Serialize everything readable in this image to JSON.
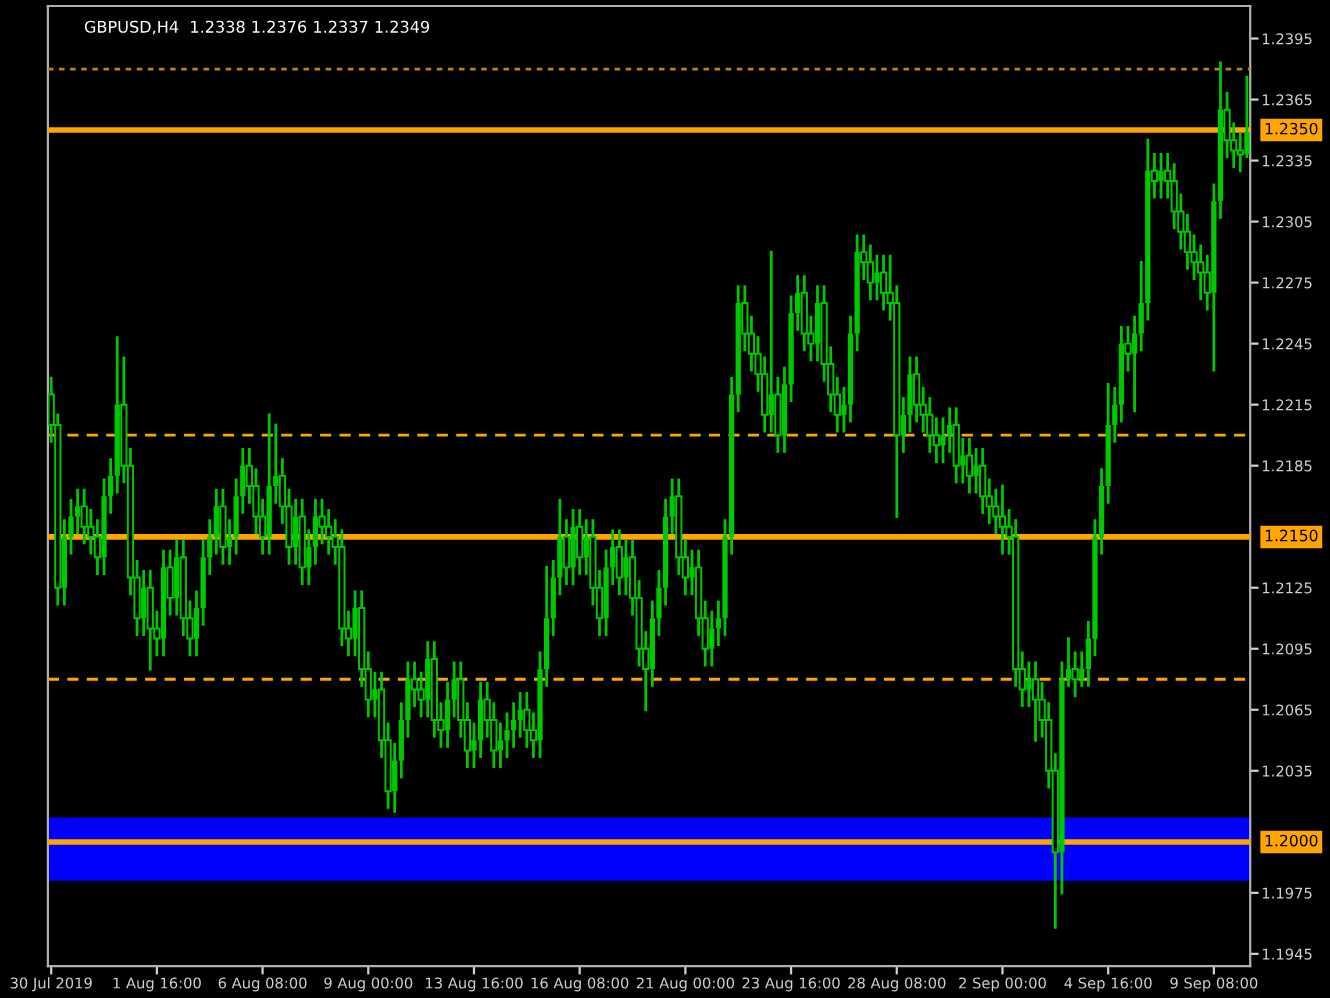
{
  "chart_data": {
    "type": "candlestick",
    "title": "GBPUSD,H4  1.2338 1.2376 1.2337 1.2349",
    "categories": [
      "30 Jul 2019",
      null,
      null,
      null,
      null,
      null,
      null,
      null,
      null,
      null,
      null,
      null,
      null,
      null,
      null,
      null,
      "1 Aug 16:00",
      null,
      null,
      null,
      null,
      null,
      null,
      null,
      null,
      null,
      null,
      null,
      null,
      null,
      null,
      null,
      "6 Aug 08:00",
      null,
      null,
      null,
      null,
      null,
      null,
      null,
      null,
      null,
      null,
      null,
      null,
      null,
      null,
      null,
      "9 Aug 00:00",
      null,
      null,
      null,
      null,
      null,
      null,
      null,
      null,
      null,
      null,
      null,
      null,
      null,
      null,
      null,
      "13 Aug 16:00",
      null,
      null,
      null,
      null,
      null,
      null,
      null,
      null,
      null,
      null,
      null,
      null,
      null,
      null,
      null,
      "16 Aug 08:00",
      null,
      null,
      null,
      null,
      null,
      null,
      null,
      null,
      null,
      null,
      null,
      null,
      null,
      null,
      null,
      "21 Aug 00:00",
      null,
      null,
      null,
      null,
      null,
      null,
      null,
      null,
      null,
      null,
      null,
      null,
      null,
      null,
      null,
      "23 Aug 16:00",
      null,
      null,
      null,
      null,
      null,
      null,
      null,
      null,
      null,
      null,
      null,
      null,
      null,
      null,
      null,
      "28 Aug 08:00",
      null,
      null,
      null,
      null,
      null,
      null,
      null,
      null,
      null,
      null,
      null,
      null,
      null,
      null,
      null,
      "2 Sep 00:00",
      null,
      null,
      null,
      null,
      null,
      null,
      null,
      null,
      null,
      null,
      null,
      null,
      null,
      null,
      null,
      "4 Sep 16:00",
      null,
      null,
      null,
      null,
      null,
      null,
      null,
      null,
      null,
      null,
      null,
      null,
      null,
      null,
      null,
      "9 Sep 08:00",
      null,
      null,
      null,
      null,
      null
    ],
    "colors": [
      "#00c800",
      "#00c800",
      "#00c800",
      "#00c800",
      "#00c800",
      "#00c800",
      "#00c800",
      "#00c800",
      "#00c800",
      "#00c800",
      "#00c800",
      "#00c800",
      "#00c800",
      "#00c800",
      "#00c800",
      "#00c800",
      "#00c800",
      "#00c800",
      "#00c800",
      "#00c800",
      "#00c800",
      "#00c800",
      "#00c800",
      "#00c800",
      "#00c800",
      "#00c800",
      "#00c800",
      "#00c800",
      "#00c800",
      "#00c800",
      "#00c800",
      "#00c800",
      "#00c800",
      "#00c800",
      "#00c800",
      "#00c800",
      "#00c800",
      "#00c800",
      "#00c800",
      "#00c800",
      "#00c800",
      "#00c800",
      "#00c800",
      "#00c800",
      "#00c800",
      "#00c800",
      "#00c800",
      "#00c800",
      "#00c800",
      "#00c800",
      "#00c800",
      "#00c800",
      "#00c800",
      "#00c800",
      "#00c800",
      "#00c800",
      "#00c800",
      "#00c800",
      "#00c800",
      "#00c800",
      "#00c800",
      "#00c800",
      "#00c800",
      "#00c800",
      "#00c800",
      "#00c800",
      "#00c800",
      "#00c800",
      "#00c800",
      "#00c800",
      "#00c800",
      "#00c800",
      "#00c800",
      "#00c800",
      "#00c800",
      "#00c800",
      "#00c800",
      "#00c800",
      "#00c800",
      "#00c800",
      "#00c800",
      "#00c800",
      "#00c800",
      "#00c800",
      "#00c800",
      "#00c800",
      "#00c800",
      "#00c800",
      "#00c800",
      "#00c800",
      "#00c800",
      "#00c800",
      "#00c800",
      "#00c800",
      "#00c800",
      "#00c800",
      "#00c800",
      "#00c800",
      "#00c800",
      "#00c800",
      "#00c800",
      "#00c800",
      "#00c800",
      "#00c800",
      "#00c800",
      "#00c800",
      "#00c800",
      "#00c800",
      "#00c800",
      "#00c800",
      "#00c800",
      "#00c800",
      "#00c800",
      "#00c800",
      "#00c800",
      "#00c800",
      "#00c800",
      "#00c800",
      "#00c800",
      "#00c800",
      "#00c800",
      "#00c800",
      "#00c800",
      "#00c800",
      "#00c800",
      "#00c800",
      "#00c800",
      "#00c800",
      "#00c800",
      "#00c800",
      "#00c800",
      "#00c800",
      "#00c800",
      "#00c800",
      "#00c800",
      "#00c800",
      "#00c800",
      "#00c800",
      "#00c800",
      "#00c800",
      "#00c800",
      "#00c800",
      "#00c800",
      "#00c800",
      "#00c800",
      "#00c800",
      "#00c800",
      "#00c800",
      "#00c800",
      "#00c800",
      "#00c800",
      "#00c800",
      "#00c800",
      "#00c800",
      "#00c800",
      "#00c800",
      "#00c800",
      "#00c800",
      "#00c800",
      "#00c800",
      "#00c800",
      "#00c800",
      "#00c800",
      "#00c800",
      "#00c800",
      "#00c800",
      "#00c800",
      "#00c800",
      "#00c800",
      "#00c800",
      "#00c800",
      "#00c800",
      "#00c800",
      "#00c800",
      "#00c800",
      "#00c800",
      "#00c800",
      "#00c800",
      "#00c800",
      "#00c800",
      "#00c800",
      "#00c800"
    ],
    "ohlc": [
      [
        1.222,
        1.2228,
        1.2197,
        1.2205
      ],
      [
        1.2205,
        1.221,
        1.2117,
        1.2125
      ],
      [
        1.2125,
        1.2158,
        1.2117,
        1.215
      ],
      [
        1.215,
        1.2168,
        1.2142,
        1.216
      ],
      [
        1.216,
        1.2173,
        1.2152,
        1.2165
      ],
      [
        1.2165,
        1.2173,
        1.2147,
        1.2155
      ],
      [
        1.2155,
        1.2163,
        1.2142,
        1.215
      ],
      [
        1.215,
        1.2158,
        1.2132,
        1.214
      ],
      [
        1.214,
        1.2178,
        1.2132,
        1.217
      ],
      [
        1.217,
        1.2188,
        1.2162,
        1.218
      ],
      [
        1.218,
        1.2248,
        1.2172,
        1.2215
      ],
      [
        1.2215,
        1.2238,
        1.2177,
        1.2185
      ],
      [
        1.2185,
        1.2193,
        1.2122,
        1.213
      ],
      [
        1.213,
        1.2138,
        1.2102,
        1.211
      ],
      [
        1.211,
        1.2133,
        1.2102,
        1.2125
      ],
      [
        1.2125,
        1.2133,
        1.2085,
        1.2105
      ],
      [
        1.2105,
        1.2113,
        1.2092,
        1.21
      ],
      [
        1.21,
        1.2143,
        1.2092,
        1.2135
      ],
      [
        1.2135,
        1.2143,
        1.2112,
        1.212
      ],
      [
        1.212,
        1.2148,
        1.2112,
        1.214
      ],
      [
        1.214,
        1.2148,
        1.2102,
        1.211
      ],
      [
        1.211,
        1.2118,
        1.2092,
        1.21
      ],
      [
        1.21,
        1.2123,
        1.2092,
        1.2115
      ],
      [
        1.2115,
        1.2148,
        1.2107,
        1.214
      ],
      [
        1.214,
        1.2158,
        1.2132,
        1.215
      ],
      [
        1.215,
        1.2173,
        1.2142,
        1.2165
      ],
      [
        1.2165,
        1.2173,
        1.2137,
        1.2145
      ],
      [
        1.2145,
        1.2158,
        1.2137,
        1.215
      ],
      [
        1.215,
        1.2178,
        1.2142,
        1.217
      ],
      [
        1.217,
        1.2193,
        1.2162,
        1.2185
      ],
      [
        1.2185,
        1.2193,
        1.2167,
        1.2175
      ],
      [
        1.2175,
        1.2183,
        1.2152,
        1.216
      ],
      [
        1.216,
        1.2168,
        1.2142,
        1.215
      ],
      [
        1.215,
        1.221,
        1.2142,
        1.2175
      ],
      [
        1.2175,
        1.2205,
        1.2167,
        1.218
      ],
      [
        1.218,
        1.2188,
        1.2157,
        1.2165
      ],
      [
        1.2165,
        1.2173,
        1.2137,
        1.2145
      ],
      [
        1.2145,
        1.2168,
        1.2137,
        1.216
      ],
      [
        1.216,
        1.2168,
        1.2127,
        1.2135
      ],
      [
        1.2135,
        1.2153,
        1.2127,
        1.2145
      ],
      [
        1.2145,
        1.2168,
        1.2137,
        1.216
      ],
      [
        1.216,
        1.2168,
        1.2147,
        1.2155
      ],
      [
        1.2155,
        1.2163,
        1.2142,
        1.215
      ],
      [
        1.215,
        1.2158,
        1.2137,
        1.2145
      ],
      [
        1.2145,
        1.2153,
        1.2097,
        1.2105
      ],
      [
        1.2105,
        1.2113,
        1.2092,
        1.21
      ],
      [
        1.21,
        1.2123,
        1.2092,
        1.2115
      ],
      [
        1.2115,
        1.2123,
        1.2077,
        1.2085
      ],
      [
        1.2085,
        1.2093,
        1.2062,
        1.207
      ],
      [
        1.207,
        1.2083,
        1.2062,
        1.2075
      ],
      [
        1.2075,
        1.2083,
        1.2042,
        1.205
      ],
      [
        1.205,
        1.2058,
        1.2017,
        1.2025
      ],
      [
        1.2025,
        1.2048,
        1.2015,
        1.204
      ],
      [
        1.204,
        1.2068,
        1.2032,
        1.206
      ],
      [
        1.206,
        1.2088,
        1.2052,
        1.208
      ],
      [
        1.208,
        1.2088,
        1.2067,
        1.2075
      ],
      [
        1.2075,
        1.2083,
        1.2062,
        1.207
      ],
      [
        1.207,
        1.2098,
        1.2062,
        1.209
      ],
      [
        1.209,
        1.2098,
        1.2052,
        1.206
      ],
      [
        1.206,
        1.2068,
        1.2047,
        1.2055
      ],
      [
        1.2055,
        1.2078,
        1.2047,
        1.207
      ],
      [
        1.207,
        1.2088,
        1.2062,
        1.208
      ],
      [
        1.208,
        1.2088,
        1.2052,
        1.206
      ],
      [
        1.206,
        1.2068,
        1.2037,
        1.2045
      ],
      [
        1.2045,
        1.2058,
        1.2037,
        1.205
      ],
      [
        1.205,
        1.2078,
        1.2042,
        1.207
      ],
      [
        1.207,
        1.2078,
        1.2052,
        1.206
      ],
      [
        1.206,
        1.2068,
        1.2037,
        1.2045
      ],
      [
        1.2045,
        1.2058,
        1.2037,
        1.205
      ],
      [
        1.205,
        1.2063,
        1.2042,
        1.2055
      ],
      [
        1.2055,
        1.2068,
        1.2047,
        1.206
      ],
      [
        1.206,
        1.2073,
        1.2052,
        1.2065
      ],
      [
        1.2065,
        1.2073,
        1.2047,
        1.2055
      ],
      [
        1.2055,
        1.2063,
        1.2042,
        1.205
      ],
      [
        1.205,
        1.2093,
        1.2042,
        1.2085
      ],
      [
        1.2085,
        1.2135,
        1.2077,
        1.211
      ],
      [
        1.211,
        1.2138,
        1.2102,
        1.213
      ],
      [
        1.213,
        1.2168,
        1.2122,
        1.215
      ],
      [
        1.215,
        1.2158,
        1.2127,
        1.2135
      ],
      [
        1.2135,
        1.2163,
        1.2127,
        1.2155
      ],
      [
        1.2155,
        1.2163,
        1.2132,
        1.214
      ],
      [
        1.214,
        1.2158,
        1.2132,
        1.215
      ],
      [
        1.215,
        1.2158,
        1.2117,
        1.2125
      ],
      [
        1.2125,
        1.2133,
        1.2102,
        1.211
      ],
      [
        1.211,
        1.2143,
        1.2102,
        1.2135
      ],
      [
        1.2135,
        1.2153,
        1.2127,
        1.2145
      ],
      [
        1.2145,
        1.2153,
        1.2122,
        1.213
      ],
      [
        1.213,
        1.2148,
        1.2122,
        1.214
      ],
      [
        1.214,
        1.2148,
        1.2112,
        1.212
      ],
      [
        1.212,
        1.2128,
        1.2087,
        1.2095
      ],
      [
        1.2095,
        1.2103,
        1.2065,
        1.2085
      ],
      [
        1.2085,
        1.2118,
        1.2077,
        1.211
      ],
      [
        1.211,
        1.2133,
        1.2102,
        1.2125
      ],
      [
        1.2125,
        1.2168,
        1.2117,
        1.216
      ],
      [
        1.216,
        1.2178,
        1.2152,
        1.217
      ],
      [
        1.217,
        1.2178,
        1.2132,
        1.214
      ],
      [
        1.214,
        1.2148,
        1.2122,
        1.213
      ],
      [
        1.213,
        1.2143,
        1.2122,
        1.2135
      ],
      [
        1.2135,
        1.2143,
        1.2102,
        1.211
      ],
      [
        1.211,
        1.2118,
        1.2087,
        1.2095
      ],
      [
        1.2095,
        1.2113,
        1.2087,
        1.2105
      ],
      [
        1.2105,
        1.2118,
        1.2097,
        1.211
      ],
      [
        1.211,
        1.2158,
        1.2102,
        1.215
      ],
      [
        1.215,
        1.2228,
        1.2142,
        1.222
      ],
      [
        1.222,
        1.2273,
        1.2212,
        1.2265
      ],
      [
        1.2265,
        1.2273,
        1.2242,
        1.225
      ],
      [
        1.225,
        1.2258,
        1.2232,
        1.224
      ],
      [
        1.224,
        1.2248,
        1.2222,
        1.223
      ],
      [
        1.223,
        1.2238,
        1.2202,
        1.221
      ],
      [
        1.221,
        1.229,
        1.2202,
        1.222
      ],
      [
        1.222,
        1.2228,
        1.2192,
        1.22
      ],
      [
        1.22,
        1.2233,
        1.2192,
        1.2225
      ],
      [
        1.2225,
        1.2268,
        1.2217,
        1.226
      ],
      [
        1.226,
        1.2278,
        1.2252,
        1.227
      ],
      [
        1.227,
        1.2278,
        1.2242,
        1.225
      ],
      [
        1.225,
        1.2258,
        1.2237,
        1.2245
      ],
      [
        1.2245,
        1.2273,
        1.2237,
        1.2265
      ],
      [
        1.2265,
        1.2273,
        1.2227,
        1.2235
      ],
      [
        1.2235,
        1.2243,
        1.2212,
        1.222
      ],
      [
        1.222,
        1.2228,
        1.2202,
        1.221
      ],
      [
        1.221,
        1.2223,
        1.2202,
        1.2215
      ],
      [
        1.2215,
        1.2258,
        1.2207,
        1.225
      ],
      [
        1.225,
        1.2298,
        1.2242,
        1.229
      ],
      [
        1.229,
        1.2298,
        1.2277,
        1.2285
      ],
      [
        1.2285,
        1.2293,
        1.2267,
        1.2275
      ],
      [
        1.2275,
        1.2288,
        1.2267,
        1.228
      ],
      [
        1.228,
        1.2288,
        1.2262,
        1.227
      ],
      [
        1.227,
        1.2288,
        1.2257,
        1.2265
      ],
      [
        1.2265,
        1.2273,
        1.216,
        1.22
      ],
      [
        1.22,
        1.2218,
        1.2192,
        1.221
      ],
      [
        1.221,
        1.2238,
        1.2202,
        1.223
      ],
      [
        1.223,
        1.2238,
        1.2207,
        1.2215
      ],
      [
        1.2215,
        1.2223,
        1.2202,
        1.221
      ],
      [
        1.221,
        1.2218,
        1.2192,
        1.22
      ],
      [
        1.22,
        1.2208,
        1.2187,
        1.2195
      ],
      [
        1.2195,
        1.2208,
        1.2187,
        1.22
      ],
      [
        1.22,
        1.2213,
        1.2192,
        1.2205
      ],
      [
        1.2205,
        1.2213,
        1.2177,
        1.2185
      ],
      [
        1.2185,
        1.2198,
        1.2177,
        1.219
      ],
      [
        1.219,
        1.2198,
        1.2172,
        1.218
      ],
      [
        1.218,
        1.2193,
        1.2172,
        1.2185
      ],
      [
        1.2185,
        1.2193,
        1.2162,
        1.217
      ],
      [
        1.217,
        1.2178,
        1.2157,
        1.2165
      ],
      [
        1.2165,
        1.2173,
        1.2152,
        1.216
      ],
      [
        1.216,
        1.2175,
        1.2142,
        1.2155
      ],
      [
        1.2155,
        1.2163,
        1.2142,
        1.215
      ],
      [
        1.215,
        1.2158,
        1.2077,
        1.2085
      ],
      [
        1.2085,
        1.2093,
        1.2067,
        1.2075
      ],
      [
        1.2075,
        1.2088,
        1.2067,
        1.208
      ],
      [
        1.208,
        1.2088,
        1.205,
        1.207
      ],
      [
        1.207,
        1.2078,
        1.2052,
        1.206
      ],
      [
        1.206,
        1.2068,
        1.2027,
        1.2035
      ],
      [
        1.2035,
        1.2043,
        1.1958,
        1.1995
      ],
      [
        1.1995,
        1.2088,
        1.1975,
        1.208
      ],
      [
        1.208,
        1.21,
        1.2077,
        1.2085
      ],
      [
        1.2085,
        1.2093,
        1.2072,
        1.208
      ],
      [
        1.208,
        1.2093,
        1.2077,
        1.2085
      ],
      [
        1.2085,
        1.2108,
        1.2077,
        1.21
      ],
      [
        1.21,
        1.2158,
        1.2092,
        1.215
      ],
      [
        1.215,
        1.2183,
        1.2142,
        1.2175
      ],
      [
        1.2175,
        1.2225,
        1.2167,
        1.2205
      ],
      [
        1.2205,
        1.2223,
        1.2197,
        1.2215
      ],
      [
        1.2215,
        1.2253,
        1.2207,
        1.2245
      ],
      [
        1.2245,
        1.2253,
        1.2232,
        1.224
      ],
      [
        1.224,
        1.2258,
        1.2212,
        1.225
      ],
      [
        1.225,
        1.2285,
        1.2242,
        1.2265
      ],
      [
        1.2265,
        1.2345,
        1.2257,
        1.233
      ],
      [
        1.233,
        1.2338,
        1.2317,
        1.2325
      ],
      [
        1.2325,
        1.2338,
        1.2317,
        1.233
      ],
      [
        1.233,
        1.2338,
        1.2317,
        1.2325
      ],
      [
        1.2325,
        1.2333,
        1.2302,
        1.231
      ],
      [
        1.231,
        1.2318,
        1.2292,
        1.23
      ],
      [
        1.23,
        1.2308,
        1.2282,
        1.229
      ],
      [
        1.229,
        1.2298,
        1.2277,
        1.2285
      ],
      [
        1.2285,
        1.2293,
        1.2267,
        1.228
      ],
      [
        1.228,
        1.2288,
        1.2262,
        1.227
      ],
      [
        1.227,
        1.2323,
        1.2232,
        1.2315
      ],
      [
        1.2315,
        1.2383,
        1.2307,
        1.236
      ],
      [
        1.236,
        1.2368,
        1.2337,
        1.2345
      ],
      [
        1.2345,
        1.2353,
        1.2332,
        1.234
      ],
      [
        1.234,
        1.2348,
        1.233,
        1.2338
      ],
      [
        1.2338,
        1.2376,
        1.2337,
        1.2349
      ]
    ],
    "ylim": [
      1.1939,
      1.2411
    ],
    "yticks": [
      1.1945,
      1.1975,
      1.2035,
      1.2065,
      1.2095,
      1.2125,
      1.2185,
      1.2215,
      1.2245,
      1.2275,
      1.2305,
      1.2335,
      1.2365,
      1.2395
    ],
    "ref_lines": [
      {
        "axis": "y",
        "value": 1.238,
        "color": "#b8860b",
        "line_style": "dotted"
      },
      {
        "axis": "y",
        "value": 1.235,
        "label": "1.2350",
        "color": "#ffa500",
        "line_style": "solid"
      },
      {
        "axis": "y",
        "value": 1.22,
        "color": "#ffa500",
        "line_style": "dashed"
      },
      {
        "axis": "y",
        "value": 1.215,
        "label": "1.2150",
        "color": "#ffa500",
        "line_style": "solid"
      },
      {
        "axis": "y",
        "value": 1.208,
        "color": "#ffa500",
        "line_style": "dashed"
      },
      {
        "axis": "y",
        "value": 1.2,
        "label": "1.2000",
        "color": "#ffa500",
        "line_style": "solid"
      }
    ],
    "bands": [
      {
        "axis": "y",
        "from": 1.1981,
        "to": 1.2012,
        "color": "#0000ff"
      }
    ],
    "grid": false,
    "legend": false
  }
}
